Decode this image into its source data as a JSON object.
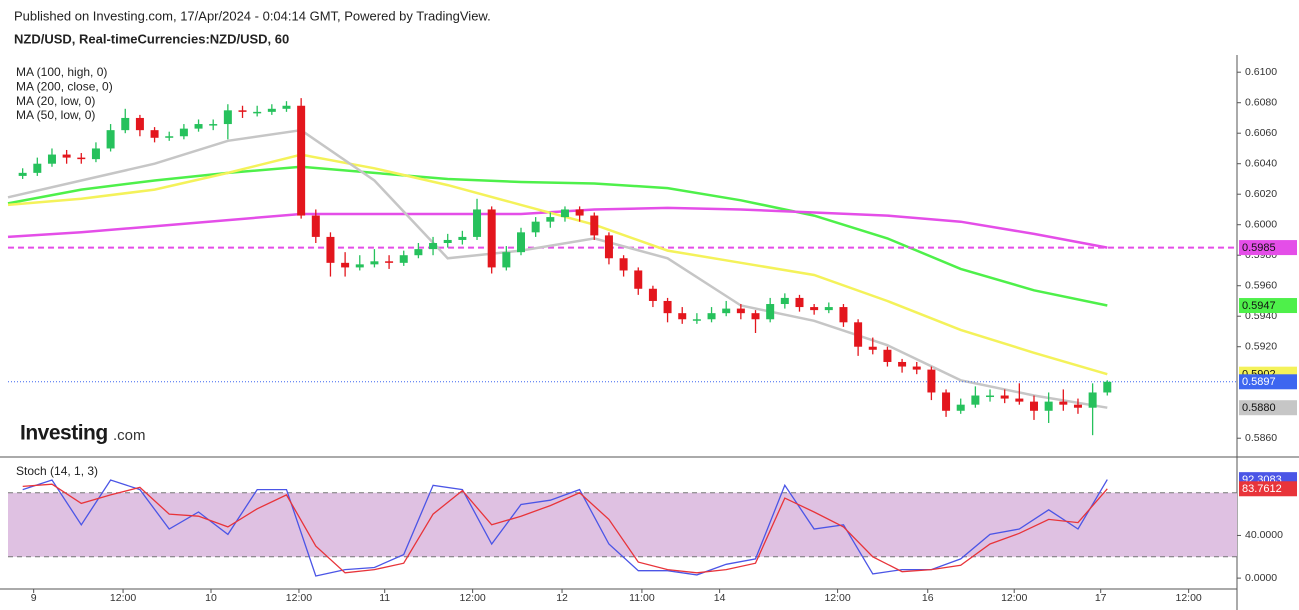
{
  "header": {
    "published": "Published on Investing.com, 17/Apr/2024 - 0:04:14 GMT, Powered by TradingView.",
    "symbol": "NZD/USD, Real-timeCurrencies:NZD/USD, 60"
  },
  "watermark": {
    "brand": "Investing",
    "suffix": ".com"
  },
  "chart_data": [
    {
      "type": "candlestick",
      "up_color": "#26c15c",
      "down_color": "#e3161d",
      "xlim": [
        0,
        167.7
      ],
      "ylim": [
        0.5849,
        0.6108
      ],
      "yticks": [
        {
          "value": 0.61,
          "label": "0.6100"
        },
        {
          "value": 0.608,
          "label": "0.6080"
        },
        {
          "value": 0.606,
          "label": "0.6060"
        },
        {
          "value": 0.604,
          "label": "0.6040"
        },
        {
          "value": 0.602,
          "label": "0.6020"
        },
        {
          "value": 0.6,
          "label": "0.6000"
        },
        {
          "value": 0.598,
          "label": "0.5980"
        },
        {
          "value": 0.596,
          "label": "0.5960"
        },
        {
          "value": 0.594,
          "label": "0.5940"
        },
        {
          "value": 0.592,
          "label": "0.5920"
        },
        {
          "value": 0.586,
          "label": "0.5860"
        }
      ],
      "x": [
        2,
        4,
        6,
        8,
        10,
        12,
        14,
        16,
        18,
        20,
        22,
        24,
        26,
        28,
        30,
        32,
        34,
        36,
        38,
        40,
        42,
        44,
        46,
        48,
        50,
        52,
        54,
        56,
        58,
        60,
        62,
        64,
        66,
        68,
        70,
        72,
        74,
        76,
        78,
        80,
        82,
        84,
        86,
        88,
        90,
        92,
        94,
        96,
        98,
        100,
        102,
        104,
        106,
        108,
        110,
        112,
        114,
        116,
        118,
        120,
        122,
        124,
        126,
        128,
        130,
        132,
        134,
        136,
        138,
        140,
        142,
        144,
        146,
        148,
        150
      ],
      "candles": [
        [
          0.6032,
          0.6037,
          0.603,
          0.6034
        ],
        [
          0.6034,
          0.6044,
          0.6032,
          0.604
        ],
        [
          0.604,
          0.605,
          0.6038,
          0.6046
        ],
        [
          0.6046,
          0.6049,
          0.604,
          0.6044
        ],
        [
          0.6044,
          0.6047,
          0.604,
          0.6043
        ],
        [
          0.6043,
          0.6054,
          0.6041,
          0.605
        ],
        [
          0.605,
          0.6066,
          0.6048,
          0.6062
        ],
        [
          0.6062,
          0.6076,
          0.606,
          0.607
        ],
        [
          0.607,
          0.6072,
          0.6058,
          0.6062
        ],
        [
          0.6062,
          0.6064,
          0.6054,
          0.6057
        ],
        [
          0.6057,
          0.6061,
          0.6055,
          0.6058
        ],
        [
          0.6058,
          0.6066,
          0.6056,
          0.6063
        ],
        [
          0.6063,
          0.6069,
          0.6061,
          0.6066
        ],
        [
          0.6066,
          0.6069,
          0.6062,
          0.6066
        ],
        [
          0.6066,
          0.6079,
          0.6056,
          0.6075
        ],
        [
          0.6075,
          0.6078,
          0.607,
          0.6074
        ],
        [
          0.6074,
          0.6078,
          0.6071,
          0.6074
        ],
        [
          0.6074,
          0.6079,
          0.6072,
          0.6076
        ],
        [
          0.6076,
          0.6081,
          0.6074,
          0.6078
        ],
        [
          0.6078,
          0.6083,
          0.6004,
          0.6006
        ],
        [
          0.6006,
          0.601,
          0.5988,
          0.5992
        ],
        [
          0.5992,
          0.5995,
          0.5966,
          0.5975
        ],
        [
          0.5975,
          0.5982,
          0.5966,
          0.5972
        ],
        [
          0.5972,
          0.598,
          0.597,
          0.5974
        ],
        [
          0.5974,
          0.5984,
          0.5972,
          0.5976
        ],
        [
          0.5976,
          0.598,
          0.5971,
          0.5975
        ],
        [
          0.5975,
          0.5983,
          0.5973,
          0.598
        ],
        [
          0.598,
          0.5988,
          0.5978,
          0.5984
        ],
        [
          0.5984,
          0.5992,
          0.598,
          0.5988
        ],
        [
          0.5988,
          0.5994,
          0.5985,
          0.599
        ],
        [
          0.599,
          0.5996,
          0.5987,
          0.5992
        ],
        [
          0.5992,
          0.6017,
          0.599,
          0.601
        ],
        [
          0.601,
          0.6012,
          0.5968,
          0.5972
        ],
        [
          0.5972,
          0.5986,
          0.597,
          0.5982
        ],
        [
          0.5982,
          0.5998,
          0.598,
          0.5995
        ],
        [
          0.5995,
          0.6005,
          0.5992,
          0.6002
        ],
        [
          0.6002,
          0.6008,
          0.5998,
          0.6005
        ],
        [
          0.6005,
          0.6012,
          0.6002,
          0.601
        ],
        [
          0.601,
          0.6012,
          0.6002,
          0.6006
        ],
        [
          0.6006,
          0.6008,
          0.599,
          0.5993
        ],
        [
          0.5993,
          0.5995,
          0.5974,
          0.5978
        ],
        [
          0.5978,
          0.598,
          0.5966,
          0.597
        ],
        [
          0.597,
          0.5972,
          0.5954,
          0.5958
        ],
        [
          0.5958,
          0.596,
          0.5946,
          0.595
        ],
        [
          0.595,
          0.5952,
          0.5936,
          0.5942
        ],
        [
          0.5942,
          0.5946,
          0.5935,
          0.5938
        ],
        [
          0.5938,
          0.5942,
          0.5935,
          0.5938
        ],
        [
          0.5938,
          0.5946,
          0.5936,
          0.5942
        ],
        [
          0.5942,
          0.595,
          0.594,
          0.5945
        ],
        [
          0.5945,
          0.5948,
          0.5938,
          0.5942
        ],
        [
          0.5942,
          0.5944,
          0.5929,
          0.5938
        ],
        [
          0.5938,
          0.5952,
          0.5936,
          0.5948
        ],
        [
          0.5948,
          0.5955,
          0.5945,
          0.5952
        ],
        [
          0.5952,
          0.5954,
          0.5943,
          0.5946
        ],
        [
          0.5946,
          0.5948,
          0.5941,
          0.5944
        ],
        [
          0.5944,
          0.5949,
          0.5942,
          0.5946
        ],
        [
          0.5946,
          0.5948,
          0.5933,
          0.5936
        ],
        [
          0.5936,
          0.5938,
          0.5914,
          0.592
        ],
        [
          0.592,
          0.5926,
          0.5915,
          0.5918
        ],
        [
          0.5918,
          0.592,
          0.5907,
          0.591
        ],
        [
          0.591,
          0.5912,
          0.5903,
          0.5907
        ],
        [
          0.5907,
          0.591,
          0.5902,
          0.5905
        ],
        [
          0.5905,
          0.5907,
          0.5885,
          0.589
        ],
        [
          0.589,
          0.5892,
          0.5874,
          0.5878
        ],
        [
          0.5878,
          0.5886,
          0.5876,
          0.5882
        ],
        [
          0.5882,
          0.5894,
          0.588,
          0.5888
        ],
        [
          0.5888,
          0.5892,
          0.5884,
          0.5888
        ],
        [
          0.5888,
          0.5892,
          0.5883,
          0.5886
        ],
        [
          0.5886,
          0.5896,
          0.5882,
          0.5884
        ],
        [
          0.5884,
          0.5888,
          0.5872,
          0.5878
        ],
        [
          0.5878,
          0.589,
          0.587,
          0.5884
        ],
        [
          0.5884,
          0.5892,
          0.5878,
          0.5882
        ],
        [
          0.5882,
          0.5886,
          0.5876,
          0.588
        ],
        [
          0.588,
          0.5896,
          0.5862,
          0.589
        ],
        [
          0.589,
          0.5898,
          0.5888,
          0.5897
        ]
      ],
      "price_line": 0.5897,
      "price_line_color": "#3d66f0",
      "series": [
        {
          "name": "MA (100, high, 0)",
          "color": "#4ef04a",
          "x": [
            0,
            10,
            20,
            30,
            40,
            50,
            60,
            70,
            80,
            90,
            100,
            110,
            120,
            130,
            140,
            150
          ],
          "values": [
            0.6014,
            0.6023,
            0.6029,
            0.6034,
            0.6038,
            0.6034,
            0.603,
            0.6028,
            0.6027,
            0.6024,
            0.6016,
            0.6006,
            0.5991,
            0.5971,
            0.5957,
            0.5947
          ]
        },
        {
          "name": "MA (200, close, 0)",
          "color": "#e44ee8",
          "dashed_last_line": true,
          "x": [
            0,
            10,
            20,
            30,
            40,
            50,
            60,
            70,
            80,
            90,
            100,
            110,
            120,
            130,
            140,
            150
          ],
          "values": [
            0.5992,
            0.5995,
            0.5999,
            0.6003,
            0.6007,
            0.6007,
            0.6007,
            0.6007,
            0.601,
            0.6011,
            0.601,
            0.6008,
            0.6006,
            0.6002,
            0.5994,
            0.5985
          ]
        },
        {
          "name": "MA (20, low, 0)",
          "color": "#f4f25a",
          "x": [
            0,
            10,
            20,
            30,
            40,
            50,
            60,
            70,
            80,
            90,
            100,
            110,
            120,
            130,
            140,
            150
          ],
          "values": [
            0.6013,
            0.6017,
            0.6023,
            0.6034,
            0.6046,
            0.6037,
            0.6026,
            0.6013,
            0.6,
            0.5983,
            0.5975,
            0.5967,
            0.595,
            0.5931,
            0.5916,
            0.5902
          ]
        },
        {
          "name": "MA (50, low, 0)",
          "color": "#c6c6c6",
          "x": [
            0,
            10,
            20,
            30,
            40,
            50,
            60,
            70,
            80,
            90,
            100,
            110,
            120,
            130,
            140,
            150
          ],
          "values": [
            0.6018,
            0.6029,
            0.604,
            0.6055,
            0.6062,
            0.6029,
            0.5978,
            0.5983,
            0.5991,
            0.5978,
            0.5947,
            0.5937,
            0.5921,
            0.5898,
            0.5888,
            0.588
          ],
          "value_labels": [
            null,
            null,
            null,
            null,
            null,
            null,
            null,
            null,
            null,
            null,
            null,
            null,
            null,
            null,
            null,
            "0.5880"
          ]
        }
      ]
    },
    {
      "type": "line",
      "title": "Stoch (14, 1, 3)",
      "xlim": [
        0,
        167.7
      ],
      "ylim": [
        -10.2,
        112.6
      ],
      "yticks": [
        {
          "value": 0,
          "label": "0.0000"
        },
        {
          "value": 40,
          "label": "40.0000"
        }
      ],
      "band": [
        20,
        80
      ],
      "band_color": "#dfc1e2",
      "xticks": [
        {
          "value": 3.5,
          "label": "9"
        },
        {
          "value": 15.7,
          "label": "12:00"
        },
        {
          "value": 27.7,
          "label": "10"
        },
        {
          "value": 39.7,
          "label": "12:00"
        },
        {
          "value": 51.4,
          "label": "11"
        },
        {
          "value": 63.4,
          "label": "12:00"
        },
        {
          "value": 75.6,
          "label": "12"
        },
        {
          "value": 86.5,
          "label": "11:00"
        },
        {
          "value": 97.1,
          "label": "14"
        },
        {
          "value": 113.2,
          "label": "12:00"
        },
        {
          "value": 125.5,
          "label": "16"
        },
        {
          "value": 137.3,
          "label": "12:00"
        },
        {
          "value": 149.1,
          "label": "17"
        },
        {
          "value": 161.1,
          "label": "12:00"
        }
      ],
      "series": [
        {
          "color": "#4b55e6",
          "x": [
            2,
            6,
            10,
            14,
            18,
            22,
            26,
            30,
            34,
            38,
            42,
            46,
            50,
            54,
            58,
            62,
            66,
            70,
            74,
            78,
            82,
            86,
            90,
            94,
            98,
            102,
            106,
            110,
            114,
            118,
            122,
            126,
            130,
            134,
            138,
            142,
            146,
            150
          ],
          "values": [
            83,
            92,
            50,
            92,
            83,
            46,
            62,
            41,
            83,
            83,
            2,
            8,
            10,
            22,
            87,
            83,
            32,
            69,
            73,
            83,
            32,
            7,
            7,
            3,
            13,
            18,
            87,
            46,
            50,
            4,
            8,
            8,
            18,
            41,
            46,
            64,
            46,
            92.3083
          ]
        },
        {
          "color": "#e8343a",
          "x": [
            2,
            6,
            10,
            14,
            18,
            22,
            26,
            30,
            34,
            38,
            42,
            46,
            50,
            54,
            58,
            62,
            66,
            70,
            74,
            78,
            82,
            86,
            90,
            94,
            98,
            102,
            106,
            110,
            114,
            118,
            122,
            126,
            130,
            134,
            138,
            142,
            146,
            150
          ],
          "values": [
            86,
            88,
            70,
            78,
            85,
            60,
            58,
            48,
            65,
            78,
            30,
            5,
            8,
            14,
            60,
            82,
            50,
            58,
            68,
            80,
            55,
            15,
            8,
            5,
            8,
            14,
            75,
            62,
            48,
            20,
            6,
            8,
            12,
            32,
            42,
            55,
            52,
            83.7612
          ]
        }
      ]
    }
  ]
}
